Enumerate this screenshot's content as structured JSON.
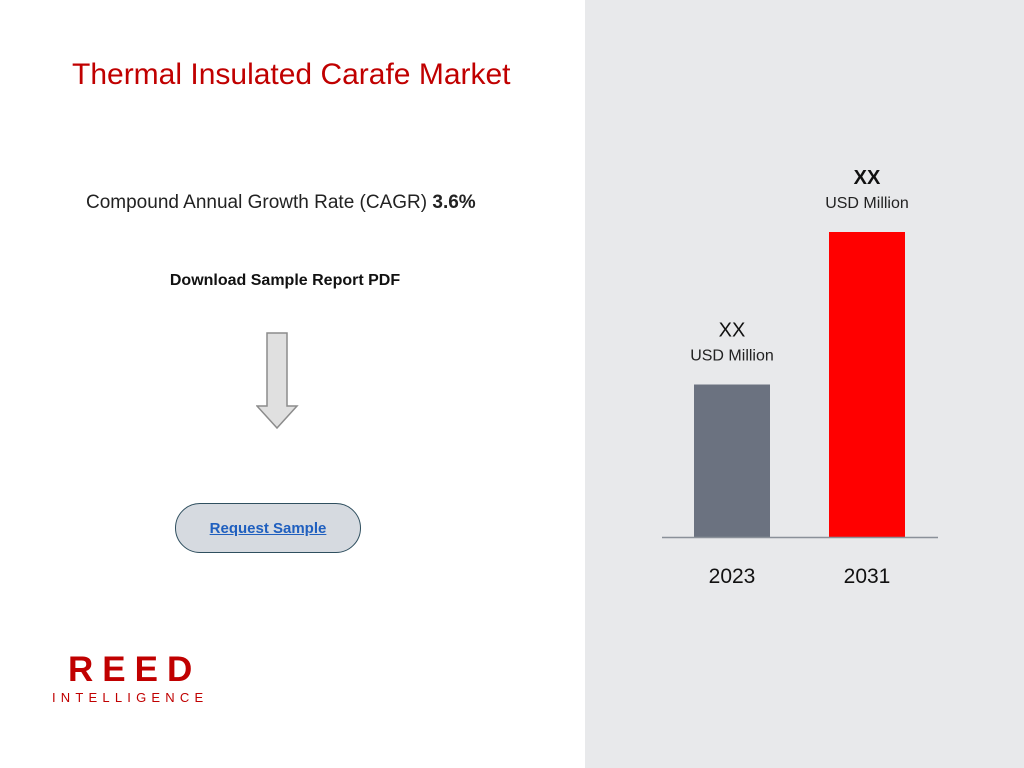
{
  "header": {
    "title": "Thermal Insulated Carafe Market"
  },
  "cagr": {
    "label": "Compound Annual Growth Rate (CAGR)",
    "value": "3.6%"
  },
  "download": {
    "label": "Download Sample Report PDF"
  },
  "request_button": {
    "label": "Request Sample"
  },
  "logo": {
    "line1": "REED",
    "line2": "INTELLIGENCE"
  },
  "colors": {
    "title": "#c00000",
    "panel_bg": "#e8e9eb",
    "bar_2023": "#6b7280",
    "bar_2031": "#ff0000",
    "axis": "#8a9099",
    "link": "#1f5fbf"
  },
  "icons": {
    "download_arrow": "arrow-down-icon"
  },
  "chart_data": {
    "type": "bar",
    "categories": [
      "2023",
      "2031"
    ],
    "values": [
      1.0,
      2.0
    ],
    "value_labels": [
      {
        "value": "XX",
        "unit": "USD Million",
        "bold": false
      },
      {
        "value": "XX",
        "unit": "USD Million",
        "bold": true
      }
    ],
    "title": "",
    "xlabel": "",
    "ylabel": "",
    "ylim": [
      0,
      2.0
    ],
    "grid": false
  }
}
